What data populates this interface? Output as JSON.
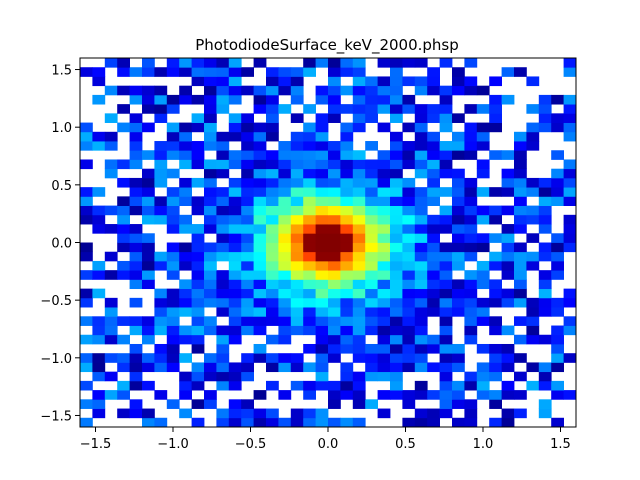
{
  "chart_data": {
    "type": "heatmap",
    "title": "PhotodiodeSurface_keV_2000.phsp",
    "xlabel": "",
    "ylabel": "",
    "xlim": [
      -1.6,
      1.6
    ],
    "ylim": [
      -1.6,
      1.6
    ],
    "grid": false,
    "colormap": "jet",
    "bins": {
      "nx": 40,
      "ny": 40
    },
    "distribution": {
      "shape": "2D peak centered at origin on sparse background",
      "peak_center": [
        0.0,
        0.0
      ],
      "peak_sigma": 0.28,
      "background_fill_fraction": 0.72,
      "empty_bin_color": "#ffffff"
    },
    "x_ticks": [
      {
        "value": -1.5,
        "label": "−1.5"
      },
      {
        "value": -1.0,
        "label": "−1.0"
      },
      {
        "value": -0.5,
        "label": "−0.5"
      },
      {
        "value": 0.0,
        "label": "0.0"
      },
      {
        "value": 0.5,
        "label": "0.5"
      },
      {
        "value": 1.0,
        "label": "1.0"
      },
      {
        "value": 1.5,
        "label": "1.5"
      }
    ],
    "y_ticks": [
      {
        "value": 1.5,
        "label": "1.5"
      },
      {
        "value": 1.0,
        "label": "1.0"
      },
      {
        "value": 0.5,
        "label": "0.5"
      },
      {
        "value": 0.0,
        "label": "0.0"
      },
      {
        "value": -0.5,
        "label": "−0.5"
      },
      {
        "value": -1.0,
        "label": "−1.0"
      },
      {
        "value": -1.5,
        "label": "−1.5"
      }
    ]
  }
}
